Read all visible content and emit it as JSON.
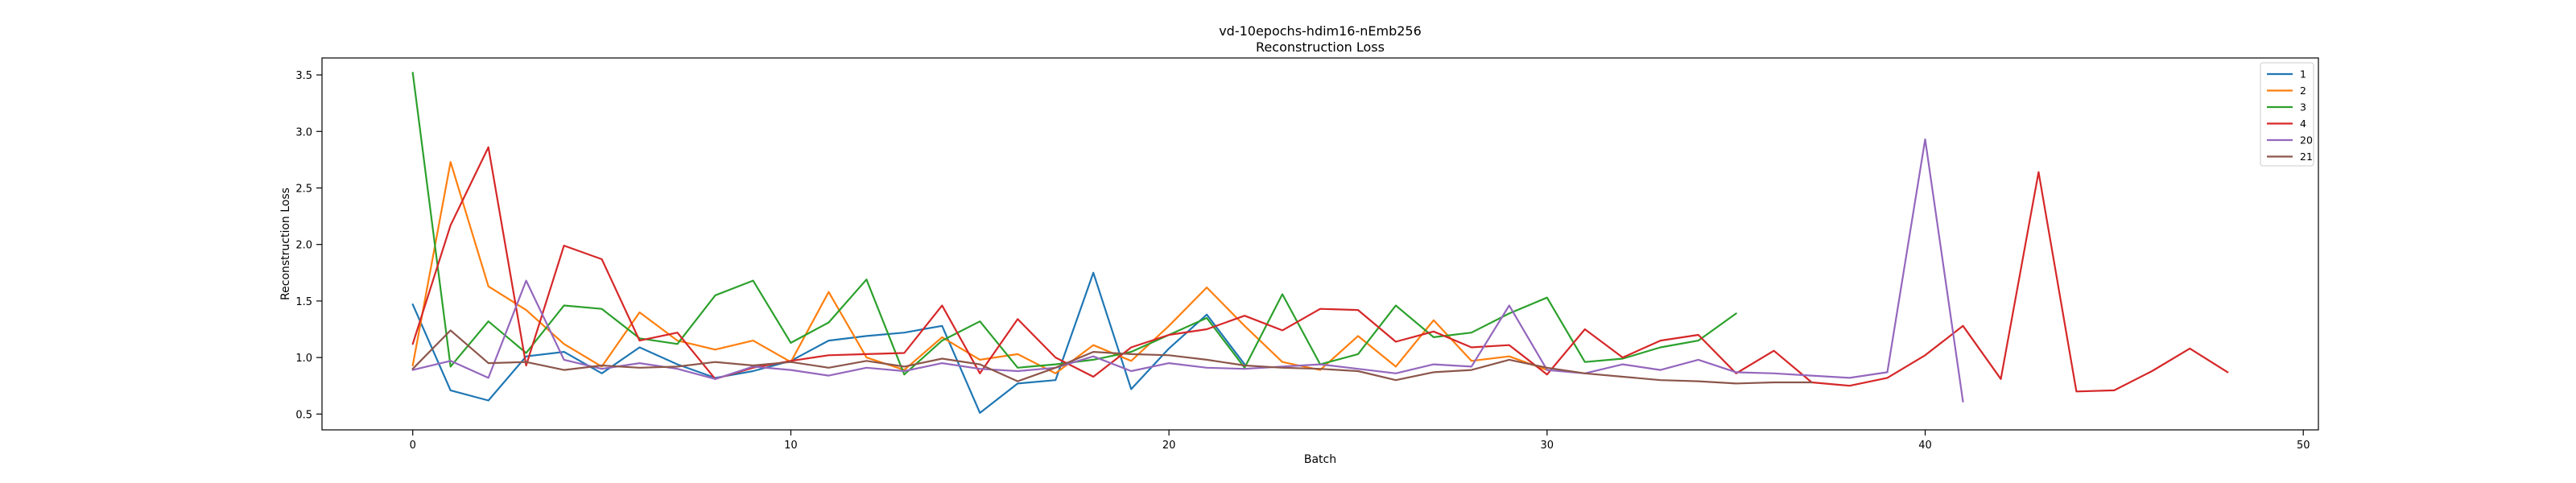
{
  "chart_data": {
    "type": "line",
    "title": "vd-10epochs-hdim16-nEmb256",
    "subtitle": "Reconstruction Loss",
    "xlabel": "Batch",
    "ylabel": "Reconstruction Loss",
    "xlim": [
      -2.4,
      50.4
    ],
    "ylim": [
      0.36,
      3.65
    ],
    "xticks": [
      0,
      10,
      20,
      30,
      40,
      50
    ],
    "yticks": [
      0.5,
      1.0,
      1.5,
      2.0,
      2.5,
      3.0,
      3.5
    ],
    "xtick_labels": [
      "0",
      "10",
      "20",
      "30",
      "40",
      "50"
    ],
    "ytick_labels": [
      "0.5",
      "1.0",
      "1.5",
      "2.0",
      "2.5",
      "3.0",
      "3.5"
    ],
    "grid": false,
    "legend_position": "top-right",
    "series": [
      {
        "name": "1",
        "color": "#1f77b4",
        "values": [
          1.47,
          0.71,
          0.62,
          1.01,
          1.05,
          0.86,
          1.09,
          0.94,
          0.82,
          0.88,
          0.97,
          1.15,
          1.19,
          1.22,
          1.28,
          0.51,
          0.77,
          0.8,
          1.75,
          0.72,
          1.08,
          1.38,
          0.94
        ]
      },
      {
        "name": "2",
        "color": "#ff7f0e",
        "values": [
          0.93,
          2.73,
          1.63,
          1.42,
          1.12,
          0.92,
          1.4,
          1.15,
          1.07,
          1.15,
          0.96,
          1.58,
          1.0,
          0.89,
          1.18,
          0.98,
          1.03,
          0.86,
          1.11,
          0.97,
          1.28,
          1.62,
          1.28,
          0.96,
          0.89,
          1.19,
          0.92,
          1.33,
          0.97,
          1.01,
          0.89
        ]
      },
      {
        "name": "3",
        "color": "#2ca02c",
        "values": [
          3.52,
          0.92,
          1.32,
          1.04,
          1.46,
          1.43,
          1.17,
          1.12,
          1.55,
          1.68,
          1.13,
          1.31,
          1.69,
          0.85,
          1.15,
          1.32,
          0.91,
          0.94,
          0.98,
          1.05,
          1.2,
          1.35,
          0.91,
          1.56,
          0.94,
          1.03,
          1.46,
          1.18,
          1.22,
          1.39,
          1.53,
          0.96,
          0.99,
          1.09,
          1.15,
          1.39
        ]
      },
      {
        "name": "4",
        "color": "#d62728",
        "values": [
          1.12,
          2.17,
          2.86,
          0.93,
          1.99,
          1.87,
          1.15,
          1.22,
          0.81,
          0.91,
          0.97,
          1.02,
          1.03,
          1.04,
          1.46,
          0.86,
          1.34,
          1.0,
          0.83,
          1.09,
          1.2,
          1.25,
          1.37,
          1.24,
          1.43,
          1.42,
          1.14,
          1.23,
          1.09,
          1.11,
          0.85,
          1.25,
          1.0,
          1.15,
          1.2,
          0.86,
          1.06,
          0.78,
          0.75,
          0.82,
          1.02,
          1.28,
          0.81,
          2.64,
          0.7,
          0.71,
          0.88,
          1.08,
          0.87
        ]
      },
      {
        "name": "20",
        "color": "#9467bd",
        "values": [
          0.89,
          0.97,
          0.82,
          1.68,
          0.98,
          0.9,
          0.95,
          0.9,
          0.81,
          0.92,
          0.89,
          0.84,
          0.91,
          0.88,
          0.95,
          0.9,
          0.88,
          0.91,
          1.01,
          0.88,
          0.95,
          0.91,
          0.9,
          0.92,
          0.94,
          0.9,
          0.86,
          0.94,
          0.92,
          1.46,
          0.89,
          0.86,
          0.94,
          0.89,
          0.98,
          0.87,
          0.86,
          0.84,
          0.82,
          0.87,
          2.93,
          0.61
        ]
      },
      {
        "name": "21",
        "color": "#8c564b",
        "values": [
          0.9,
          1.24,
          0.95,
          0.96,
          0.89,
          0.93,
          0.91,
          0.92,
          0.96,
          0.93,
          0.96,
          0.91,
          0.97,
          0.92,
          0.99,
          0.94,
          0.79,
          0.91,
          1.05,
          1.03,
          1.02,
          0.98,
          0.93,
          0.91,
          0.9,
          0.88,
          0.8,
          0.87,
          0.89,
          0.98,
          0.91,
          0.86,
          0.83,
          0.8,
          0.79,
          0.77,
          0.78,
          0.78
        ]
      }
    ]
  }
}
